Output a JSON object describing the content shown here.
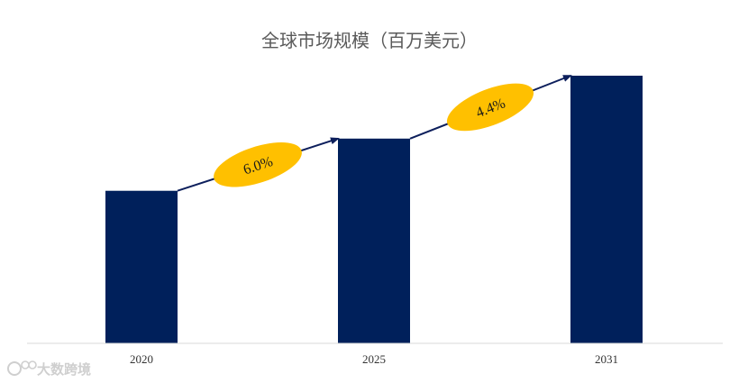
{
  "chart_data": {
    "type": "bar",
    "title": "全球市场规模（百万美元）",
    "categories": [
      "2020",
      "2025",
      "2031"
    ],
    "values": [
      57,
      76.5,
      100
    ],
    "ylim": [
      0,
      100
    ],
    "xlabel": "",
    "ylabel": "",
    "grid": false,
    "legend": "none",
    "bar_color": "#00205b",
    "growth_labels": [
      {
        "from": "2020",
        "to": "2025",
        "label": "6.0%"
      },
      {
        "from": "2025",
        "to": "2031",
        "label": "4.4%"
      }
    ],
    "ellipse_color": "#ffc000",
    "arrow_color": "#0d1f5c"
  },
  "watermark": {
    "text": "大数跨境",
    "icon": "logo-mark-icon"
  }
}
